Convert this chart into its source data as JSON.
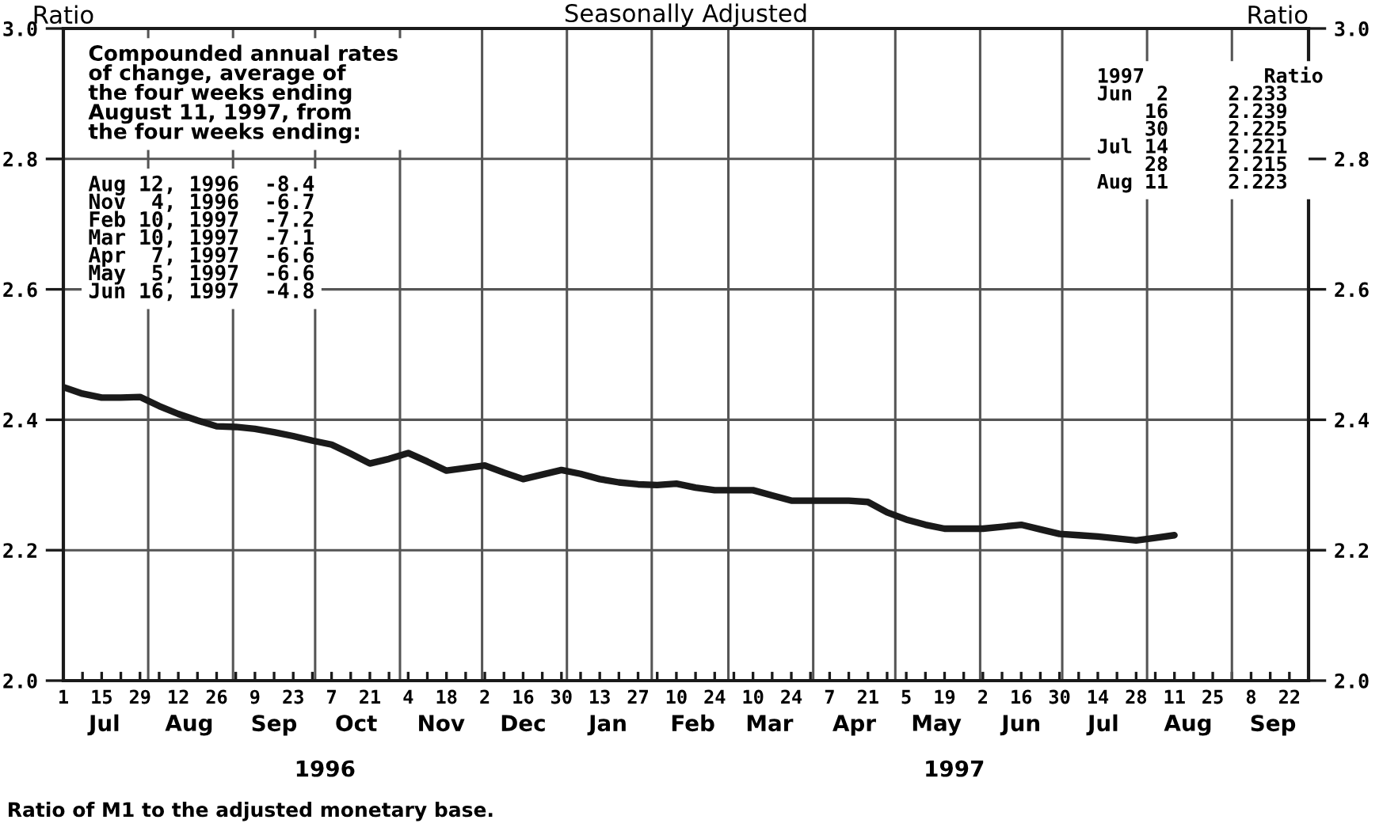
{
  "chart_data": {
    "type": "line",
    "title": "Seasonally Adjusted",
    "ylabel": "Ratio",
    "y2label": "Ratio",
    "x": [
      "1996-07-01",
      "1996-07-08",
      "1996-07-15",
      "1996-07-22",
      "1996-07-29",
      "1996-08-05",
      "1996-08-12",
      "1996-08-19",
      "1996-08-26",
      "1996-09-02",
      "1996-09-09",
      "1996-09-16",
      "1996-09-23",
      "1996-09-30",
      "1996-10-07",
      "1996-10-14",
      "1996-10-21",
      "1996-10-28",
      "1996-11-04",
      "1996-11-11",
      "1996-11-18",
      "1996-11-25",
      "1996-12-02",
      "1996-12-09",
      "1996-12-16",
      "1996-12-23",
      "1996-12-30",
      "1997-01-06",
      "1997-01-13",
      "1997-01-20",
      "1997-01-27",
      "1997-02-03",
      "1997-02-10",
      "1997-02-17",
      "1997-02-24",
      "1997-03-03",
      "1997-03-10",
      "1997-03-17",
      "1997-03-24",
      "1997-03-31",
      "1997-04-07",
      "1997-04-14",
      "1997-04-21",
      "1997-04-28",
      "1997-05-05",
      "1997-05-12",
      "1997-05-19",
      "1997-05-26",
      "1997-06-02",
      "1997-06-09",
      "1997-06-16",
      "1997-06-23",
      "1997-06-30",
      "1997-07-07",
      "1997-07-14",
      "1997-07-21",
      "1997-07-28",
      "1997-08-04",
      "1997-08-11"
    ],
    "series": [
      {
        "color": "#1a1a1a",
        "values": [
          2.45,
          2.44,
          2.434,
          2.434,
          2.435,
          2.421,
          2.409,
          2.399,
          2.39,
          2.389,
          2.386,
          2.381,
          2.375,
          2.368,
          2.362,
          2.348,
          2.333,
          2.34,
          2.349,
          2.336,
          2.322,
          2.326,
          2.33,
          2.319,
          2.309,
          2.316,
          2.323,
          2.317,
          2.309,
          2.304,
          2.301,
          2.3,
          2.302,
          2.296,
          2.292,
          2.292,
          2.292,
          2.284,
          2.276,
          2.276,
          2.276,
          2.276,
          2.274,
          2.258,
          2.247,
          2.239,
          2.233,
          2.233,
          2.233,
          2.236,
          2.239,
          2.232,
          2.225,
          2.223,
          2.221,
          2.218,
          2.215,
          2.219,
          2.223
        ]
      }
    ],
    "xlim": [
      "1996-07-01",
      "1997-09-29"
    ],
    "xticks": [
      {
        "value": "1996-07-01",
        "label": "1"
      },
      {
        "value": "1996-07-08",
        "label": null
      },
      {
        "value": "1996-07-15",
        "label": "15"
      },
      {
        "value": "1996-07-22",
        "label": null
      },
      {
        "value": "1996-07-29",
        "label": "29"
      },
      {
        "value": "1996-08-05",
        "label": null
      },
      {
        "value": "1996-08-12",
        "label": "12"
      },
      {
        "value": "1996-08-19",
        "label": null
      },
      {
        "value": "1996-08-26",
        "label": "26"
      },
      {
        "value": "1996-09-02",
        "label": null
      },
      {
        "value": "1996-09-09",
        "label": "9"
      },
      {
        "value": "1996-09-16",
        "label": null
      },
      {
        "value": "1996-09-23",
        "label": "23"
      },
      {
        "value": "1996-09-30",
        "label": null
      },
      {
        "value": "1996-10-07",
        "label": "7"
      },
      {
        "value": "1996-10-14",
        "label": null
      },
      {
        "value": "1996-10-21",
        "label": "21"
      },
      {
        "value": "1996-10-28",
        "label": null
      },
      {
        "value": "1996-11-04",
        "label": "4"
      },
      {
        "value": "1996-11-11",
        "label": null
      },
      {
        "value": "1996-11-18",
        "label": "18"
      },
      {
        "value": "1996-11-25",
        "label": null
      },
      {
        "value": "1996-12-02",
        "label": "2"
      },
      {
        "value": "1996-12-09",
        "label": null
      },
      {
        "value": "1996-12-16",
        "label": "16"
      },
      {
        "value": "1996-12-23",
        "label": null
      },
      {
        "value": "1996-12-30",
        "label": "30"
      },
      {
        "value": "1997-01-06",
        "label": null
      },
      {
        "value": "1997-01-13",
        "label": "13"
      },
      {
        "value": "1997-01-20",
        "label": null
      },
      {
        "value": "1997-01-27",
        "label": "27"
      },
      {
        "value": "1997-02-03",
        "label": null
      },
      {
        "value": "1997-02-10",
        "label": "10"
      },
      {
        "value": "1997-02-17",
        "label": null
      },
      {
        "value": "1997-02-24",
        "label": "24"
      },
      {
        "value": "1997-03-03",
        "label": null
      },
      {
        "value": "1997-03-10",
        "label": "10"
      },
      {
        "value": "1997-03-17",
        "label": null
      },
      {
        "value": "1997-03-24",
        "label": "24"
      },
      {
        "value": "1997-03-31",
        "label": null
      },
      {
        "value": "1997-04-07",
        "label": "7"
      },
      {
        "value": "1997-04-14",
        "label": null
      },
      {
        "value": "1997-04-21",
        "label": "21"
      },
      {
        "value": "1997-04-28",
        "label": null
      },
      {
        "value": "1997-05-05",
        "label": "5"
      },
      {
        "value": "1997-05-12",
        "label": null
      },
      {
        "value": "1997-05-19",
        "label": "19"
      },
      {
        "value": "1997-05-26",
        "label": null
      },
      {
        "value": "1997-06-02",
        "label": "2"
      },
      {
        "value": "1997-06-09",
        "label": null
      },
      {
        "value": "1997-06-16",
        "label": "16"
      },
      {
        "value": "1997-06-23",
        "label": null
      },
      {
        "value": "1997-06-30",
        "label": "30"
      },
      {
        "value": "1997-07-07",
        "label": null
      },
      {
        "value": "1997-07-14",
        "label": "14"
      },
      {
        "value": "1997-07-21",
        "label": null
      },
      {
        "value": "1997-07-28",
        "label": "28"
      },
      {
        "value": "1997-08-04",
        "label": null
      },
      {
        "value": "1997-08-11",
        "label": "11"
      },
      {
        "value": "1997-08-18",
        "label": null
      },
      {
        "value": "1997-08-25",
        "label": "25"
      },
      {
        "value": "1997-09-01",
        "label": null
      },
      {
        "value": "1997-09-08",
        "label": "8"
      },
      {
        "value": "1997-09-15",
        "label": null
      },
      {
        "value": "1997-09-22",
        "label": "22"
      },
      {
        "value": "1997-09-29",
        "label": null
      }
    ],
    "ref_lines": [
      {
        "axis": "x",
        "value": "1996-08-01",
        "color": "#555555"
      },
      {
        "axis": "x",
        "value": "1996-09-01",
        "color": "#555555"
      },
      {
        "axis": "x",
        "value": "1996-10-01",
        "color": "#555555"
      },
      {
        "axis": "x",
        "value": "1996-11-01",
        "color": "#555555"
      },
      {
        "axis": "x",
        "value": "1996-12-01",
        "color": "#555555"
      },
      {
        "axis": "x",
        "value": "1997-01-01",
        "color": "#555555"
      },
      {
        "axis": "x",
        "value": "1997-02-01",
        "color": "#555555"
      },
      {
        "axis": "x",
        "value": "1997-03-01",
        "color": "#555555"
      },
      {
        "axis": "x",
        "value": "1997-04-01",
        "color": "#555555"
      },
      {
        "axis": "x",
        "value": "1997-05-01",
        "color": "#555555"
      },
      {
        "axis": "x",
        "value": "1997-06-01",
        "color": "#555555"
      },
      {
        "axis": "x",
        "value": "1997-07-01",
        "color": "#555555"
      },
      {
        "axis": "x",
        "value": "1997-08-01",
        "color": "#555555"
      },
      {
        "axis": "x",
        "value": "1997-09-01",
        "color": "#555555"
      }
    ],
    "x2lim": [
      "1996-07-01",
      "1997-09-29"
    ],
    "x2ticks": [
      {
        "value": "1996-07-16",
        "label": "Jul"
      },
      {
        "value": "1996-08-16",
        "label": "Aug"
      },
      {
        "value": "1996-09-16",
        "label": "Sep"
      },
      {
        "value": "1996-10-16",
        "label": "Oct"
      },
      {
        "value": "1996-11-16",
        "label": "Nov"
      },
      {
        "value": "1996-12-16",
        "label": "Dec"
      },
      {
        "value": "1997-01-16",
        "label": "Jan"
      },
      {
        "value": "1997-02-16",
        "label": "Feb"
      },
      {
        "value": "1997-03-16",
        "label": "Mar"
      },
      {
        "value": "1997-04-16",
        "label": "Apr"
      },
      {
        "value": "1997-05-16",
        "label": "May"
      },
      {
        "value": "1997-06-16",
        "label": "Jun"
      },
      {
        "value": "1997-07-16",
        "label": "Jul"
      },
      {
        "value": "1997-08-16",
        "label": "Aug"
      },
      {
        "value": "1997-09-16",
        "label": "Sep"
      }
    ],
    "ylim": [
      2.0,
      3.0
    ],
    "yticks": [
      {
        "value": 2.0,
        "label": "2.0"
      },
      {
        "value": 2.2,
        "label": "2.2"
      },
      {
        "value": 2.4,
        "label": "2.4"
      },
      {
        "value": 2.6,
        "label": "2.6"
      },
      {
        "value": 2.8,
        "label": "2.8"
      },
      {
        "value": 3.0,
        "label": "3.0"
      }
    ],
    "y2lim": [
      2.0,
      3.0
    ],
    "y2ticks": [
      {
        "value": 2.0,
        "label": "2.0"
      },
      {
        "value": 2.2,
        "label": "2.2"
      },
      {
        "value": 2.4,
        "label": "2.4"
      },
      {
        "value": 2.6,
        "label": "2.6"
      },
      {
        "value": 2.8,
        "label": "2.8"
      },
      {
        "value": 3.0,
        "label": "3.0"
      }
    ],
    "grid": "y",
    "line_style": "solid",
    "marker": "none",
    "annotations": [
      "Compounded annual rates\nof change, average of\nthe four weeks ending\nAugust 11, 1997, from\nthe four weeks ending:",
      "Aug 12, 1996  -8.4\nNov  4, 1996  -6.7\nFeb 10, 1997  -7.2\nMar 10, 1997  -7.1\nApr  7, 1997  -6.6\nMay  5, 1997  -6.6\nJun 16, 1997  -4.8",
      "1997          Ratio\nJun  2     2.233\n    16     2.239\n    30     2.225\nJul 14     2.221\n    28     2.215\nAug 11     2.223",
      "Ratio of M1 to the adjusted monetary base.",
      "1996",
      "1997"
    ]
  }
}
